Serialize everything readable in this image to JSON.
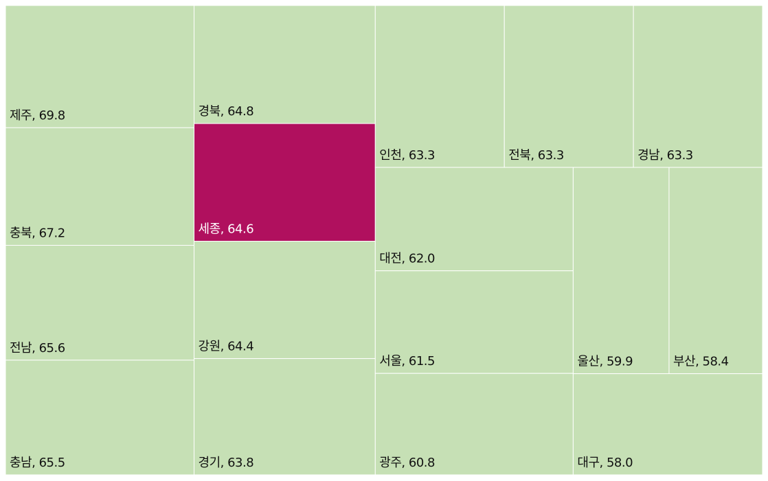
{
  "chart_data": {
    "type": "treemap",
    "categories": [
      "제주",
      "충북",
      "전남",
      "충남",
      "경북",
      "세종",
      "강원",
      "경기",
      "인천",
      "전북",
      "경남",
      "대전",
      "서울",
      "광주",
      "울산",
      "부산",
      "대구"
    ],
    "values": [
      69.8,
      67.2,
      65.6,
      65.5,
      64.8,
      64.6,
      64.4,
      63.8,
      63.3,
      63.3,
      63.3,
      62.0,
      61.5,
      60.8,
      59.9,
      58.4,
      58.0
    ],
    "value_labels": [
      "69.8",
      "67.2",
      "65.6",
      "65.5",
      "64.8",
      "64.6",
      "64.4",
      "63.8",
      "63.3",
      "63.3",
      "63.3",
      "62.0",
      "61.5",
      "60.8",
      "59.9",
      "58.4",
      "58.0"
    ],
    "color": "#c6e0b5",
    "highlight": "세종",
    "highlight_color": "#b0105e"
  }
}
